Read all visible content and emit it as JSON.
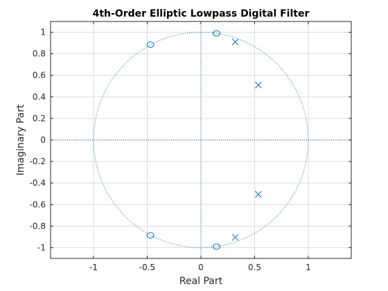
{
  "chart_data": {
    "type": "scatter",
    "title": "4th-Order Elliptic Lowpass Digital Filter",
    "xlabel": "Real Part",
    "ylabel": "Imaginary Part",
    "xlim": [
      -1.4,
      1.4
    ],
    "ylim": [
      -1.1,
      1.1
    ],
    "xticks": [
      -1,
      -0.5,
      0,
      0.5,
      1
    ],
    "xtick_labels": [
      "-1",
      "-0.5",
      "0",
      "0.5",
      "1"
    ],
    "yticks": [
      -1,
      -0.8,
      -0.6,
      -0.4,
      -0.2,
      0,
      0.2,
      0.4,
      0.6,
      0.8,
      1
    ],
    "ytick_labels": [
      "-1",
      "-0.8",
      "-0.6",
      "-0.4",
      "-0.2",
      "0",
      "0.2",
      "0.4",
      "0.6",
      "0.8",
      "1"
    ],
    "grid": true,
    "unit_circle": true,
    "color": "#0072bd",
    "zeros": [
      {
        "x": -0.47,
        "y": 0.885
      },
      {
        "x": -0.47,
        "y": -0.885
      },
      {
        "x": 0.145,
        "y": 0.99
      },
      {
        "x": 0.145,
        "y": -0.99
      }
    ],
    "poles": [
      {
        "x": 0.32,
        "y": 0.91
      },
      {
        "x": 0.32,
        "y": -0.905
      },
      {
        "x": 0.535,
        "y": 0.51
      },
      {
        "x": 0.535,
        "y": -0.505
      }
    ]
  }
}
